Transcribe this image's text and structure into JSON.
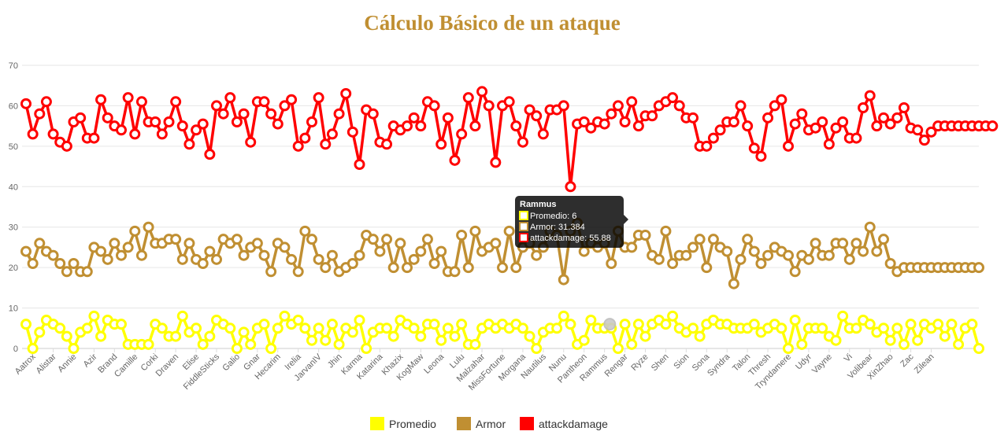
{
  "page": {
    "title": "Cálculo Básico de un ataque",
    "title_color": "#c08f32"
  },
  "chart_data": {
    "type": "line",
    "title": "Cálculo Básico de un ataque",
    "ylim": [
      0,
      70
    ],
    "yticks": [
      0,
      10,
      20,
      30,
      40,
      50,
      60,
      70
    ],
    "grid": true,
    "legend_position": "bottom",
    "x_tick_labels": [
      "Aatrox",
      "Alistar",
      "Annie",
      "Azir",
      "Brand",
      "Camille",
      "Corki",
      "Draven",
      "Elise",
      "FiddleSticks",
      "Galio",
      "Gnar",
      "Hecarim",
      "Irelia",
      "JarvanIV",
      "Jhin",
      "Karma",
      "Katarina",
      "Khazix",
      "KogMaw",
      "Leona",
      "Lulu",
      "Malzahar",
      "MissFortune",
      "Morgana",
      "Nautilus",
      "Nunu",
      "Pantheon",
      "Rammus",
      "Rengar",
      "Ryze",
      "Shen",
      "Sion",
      "Sona",
      "Syndra",
      "Talon",
      "Thresh",
      "Tryndamere",
      "Udyr",
      "Vayne",
      "Vi",
      "Volibear",
      "XinZhao",
      "Zac",
      "Zilean"
    ],
    "x_count": 141,
    "series": [
      {
        "name": "Promedio",
        "color": "#ffff00",
        "values": [
          6,
          0,
          4,
          7,
          6,
          5,
          3,
          0,
          4,
          5,
          8,
          3,
          7,
          6,
          6,
          1,
          1,
          1,
          1,
          6,
          5,
          3,
          3,
          8,
          4,
          5,
          1,
          3,
          7,
          6,
          5,
          0,
          4,
          1,
          5,
          6,
          0,
          5,
          8,
          6,
          7,
          5,
          2,
          5,
          2,
          6,
          1,
          5,
          4,
          7,
          0,
          4,
          5,
          5,
          3,
          7,
          6,
          5,
          3,
          6,
          6,
          2,
          5,
          3,
          6,
          1,
          1,
          5,
          6,
          5,
          6,
          5,
          6,
          5,
          3,
          0,
          4,
          5,
          5,
          8,
          6,
          1,
          2,
          7,
          5,
          5,
          5,
          0,
          6,
          1,
          6,
          3,
          6,
          7,
          6,
          8,
          5,
          4,
          5,
          3,
          6,
          7,
          6,
          6,
          5,
          5,
          5,
          6,
          4,
          5,
          6,
          5,
          0,
          7,
          1,
          5,
          5,
          5,
          3,
          2,
          8,
          5,
          5,
          7,
          6,
          4,
          5,
          2,
          5,
          1,
          6,
          2,
          6,
          5,
          6,
          3,
          6,
          1,
          5,
          6,
          0
        ],
        "tooltip_value": "6"
      },
      {
        "name": "Armor",
        "color": "#c08f32",
        "values": [
          24,
          21,
          26,
          24,
          23,
          21,
          19,
          21,
          19,
          19,
          25,
          24,
          22,
          26,
          23,
          25,
          29,
          23,
          30,
          26,
          26,
          27,
          27,
          22,
          26,
          22,
          21,
          24,
          22,
          27,
          26,
          27,
          23,
          25,
          26,
          23,
          19,
          26,
          25,
          22,
          19,
          29,
          27,
          22,
          20,
          23,
          19,
          20,
          21,
          23,
          28,
          27,
          24,
          27,
          20,
          26,
          20,
          22,
          24,
          27,
          21,
          24,
          19,
          19,
          28,
          20,
          29,
          24,
          25,
          26,
          20,
          29,
          20,
          25,
          26,
          23,
          25,
          29,
          28,
          17,
          29,
          31,
          24,
          26,
          25,
          26,
          21,
          29,
          25,
          25,
          28,
          28,
          23,
          22,
          29,
          21,
          23,
          23,
          25,
          27,
          20,
          27,
          25,
          24,
          16,
          22,
          27,
          24,
          21,
          23,
          25,
          24,
          23,
          19,
          23,
          22,
          26,
          23,
          23,
          26,
          26,
          22,
          26,
          24,
          30,
          24,
          27,
          21,
          19,
          20,
          20,
          20,
          20,
          20,
          20,
          20,
          20,
          20,
          20,
          20,
          20
        ],
        "tooltip_value": "31.384"
      },
      {
        "name": "attackdamage",
        "color": "#ff0000",
        "values": [
          60.5,
          53,
          58,
          61,
          53,
          51,
          50,
          56,
          57,
          52,
          52,
          61.5,
          57,
          55,
          54,
          62,
          53,
          61,
          56,
          56,
          53,
          56,
          61,
          55,
          50.5,
          54,
          55.5,
          48,
          60,
          58,
          62,
          56,
          58,
          51,
          61,
          61,
          58,
          55.5,
          60,
          61.5,
          50,
          52,
          56,
          62,
          50.5,
          53,
          58,
          63,
          53.5,
          45.5,
          59,
          58,
          51,
          50.5,
          55,
          54,
          55,
          57,
          55,
          61,
          60,
          50.5,
          57,
          46.5,
          53,
          62,
          55,
          63.5,
          60,
          46,
          60,
          61,
          55,
          51,
          59,
          57.5,
          53,
          59,
          59,
          60,
          40,
          55.5,
          56,
          54.5,
          56,
          55.5,
          58,
          60,
          56,
          61,
          55,
          57.5,
          57.5,
          60,
          61,
          62,
          60,
          57,
          57,
          50,
          50,
          52,
          54,
          56,
          56,
          60,
          55,
          49.5,
          47.5,
          57,
          60,
          61.5,
          50,
          55.5,
          58,
          54,
          54.5,
          56,
          50.5,
          54.5,
          56,
          52,
          52,
          59.5,
          62.5,
          55,
          57,
          55.5,
          57,
          59.5,
          54.5,
          54,
          51.5,
          53.5,
          55,
          55,
          55,
          55,
          55,
          55,
          55,
          55,
          55
        ],
        "tooltip_value": "55.88"
      }
    ],
    "tooltip": {
      "title": "Rammus",
      "lines": [
        "Promedio: 6",
        "Armor: 31.384",
        "attackdamage: 55.88"
      ]
    }
  }
}
